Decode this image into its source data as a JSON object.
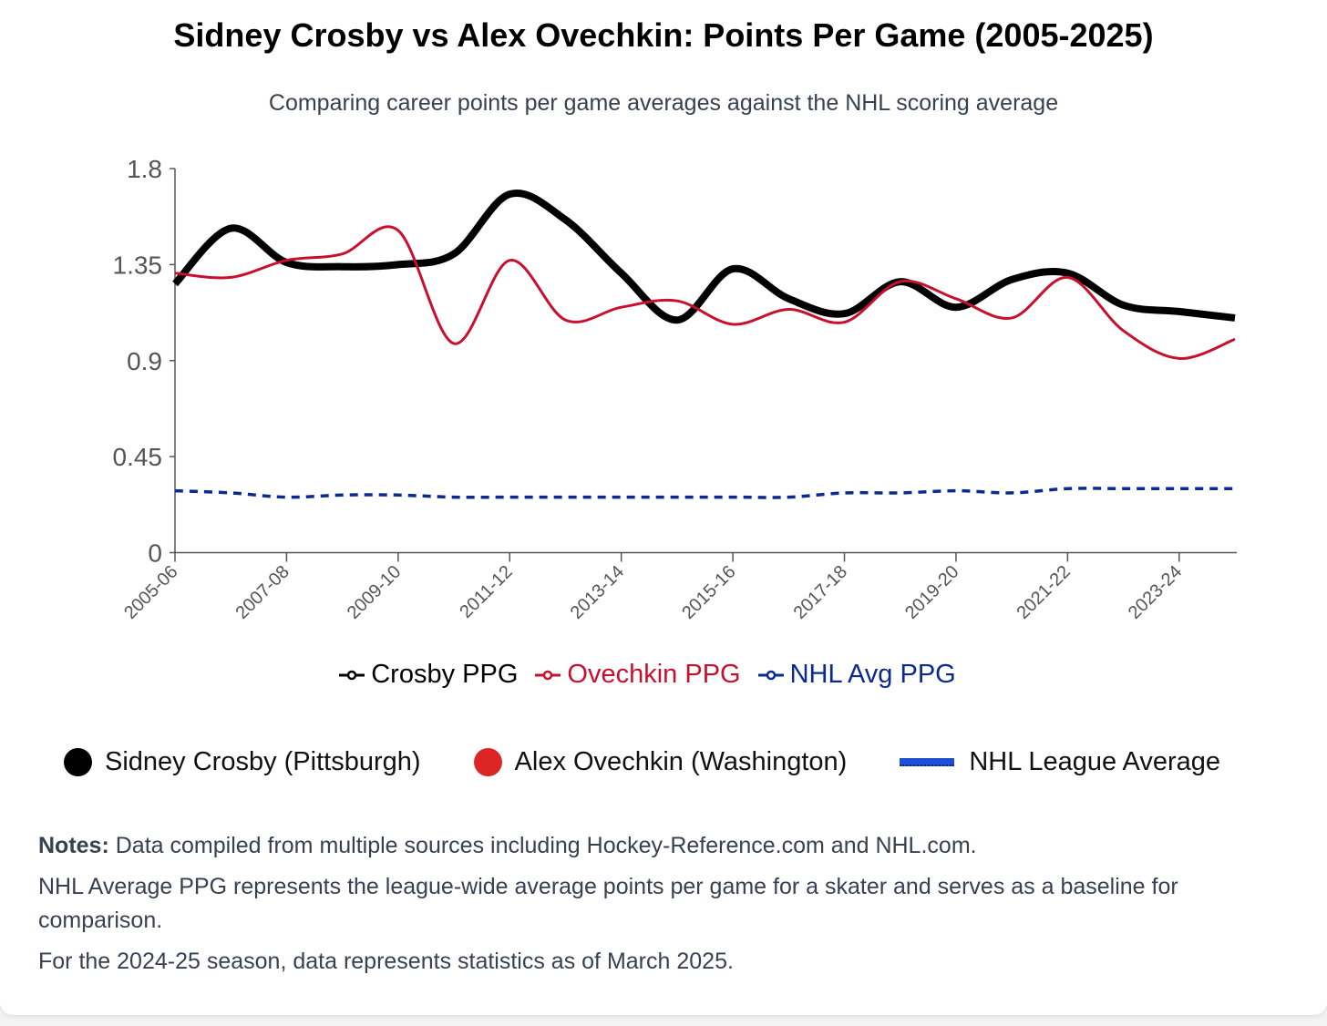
{
  "title": "Sidney Crosby vs Alex Ovechkin: Points Per Game (2005-2025)",
  "subtitle": "Comparing career points per game averages against the NHL scoring average",
  "chart_data": {
    "type": "line",
    "title": "Sidney Crosby vs Alex Ovechkin: Points Per Game (2005-2025)",
    "xlabel": "",
    "ylabel": "",
    "ylim": [
      0,
      1.8
    ],
    "yticks": [
      "0",
      "0.45",
      "0.9",
      "1.35",
      "1.8"
    ],
    "ytick_values": [
      0,
      0.45,
      0.9,
      1.35,
      1.8
    ],
    "x": [
      "2005-06",
      "2006-07",
      "2007-08",
      "2008-09",
      "2009-10",
      "2010-11",
      "2011-12",
      "2012-13",
      "2013-14",
      "2014-15",
      "2015-16",
      "2016-17",
      "2017-18",
      "2018-19",
      "2019-20",
      "2020-21",
      "2021-22",
      "2022-23",
      "2023-24",
      "2024-25"
    ],
    "xtick_labels": [
      "2005-06",
      "2007-08",
      "2009-10",
      "2011-12",
      "2013-14",
      "2015-16",
      "2017-18",
      "2019-20",
      "2021-22",
      "2023-24"
    ],
    "grid": false,
    "series": [
      {
        "name": "Crosby PPG",
        "color": "#000000",
        "values": [
          1.26,
          1.52,
          1.36,
          1.34,
          1.35,
          1.4,
          1.68,
          1.56,
          1.31,
          1.09,
          1.33,
          1.19,
          1.12,
          1.27,
          1.15,
          1.28,
          1.31,
          1.16,
          1.13,
          1.1
        ]
      },
      {
        "name": "Ovechkin PPG",
        "color": "#c8102e",
        "values": [
          1.31,
          1.29,
          1.37,
          1.4,
          1.51,
          0.98,
          1.37,
          1.09,
          1.15,
          1.18,
          1.07,
          1.14,
          1.08,
          1.27,
          1.19,
          1.1,
          1.29,
          1.04,
          0.91,
          1.0
        ]
      },
      {
        "name": "NHL Avg PPG",
        "color": "#0a2a90",
        "values": [
          0.29,
          0.28,
          0.26,
          0.27,
          0.27,
          0.26,
          0.26,
          0.26,
          0.26,
          0.26,
          0.26,
          0.26,
          0.28,
          0.28,
          0.29,
          0.28,
          0.3,
          0.3,
          0.3,
          0.3
        ]
      }
    ],
    "legend_placement": "bottom"
  },
  "legend": {
    "items": [
      {
        "label": "Sidney Crosby (Pittsburgh)",
        "color": "#000000"
      },
      {
        "label": "Alex Ovechkin (Washington)",
        "color": "#dc2626"
      },
      {
        "label": "NHL League Average",
        "color": "#1d4ed8"
      }
    ]
  },
  "notes": {
    "label": "Notes:",
    "line1": "Data compiled from multiple sources including Hockey-Reference.com and NHL.com.",
    "line2": "NHL Average PPG represents the league-wide average points per game for a skater and serves as a baseline for comparison.",
    "line3": "For the 2024-25 season, data represents statistics as of March 2025."
  }
}
